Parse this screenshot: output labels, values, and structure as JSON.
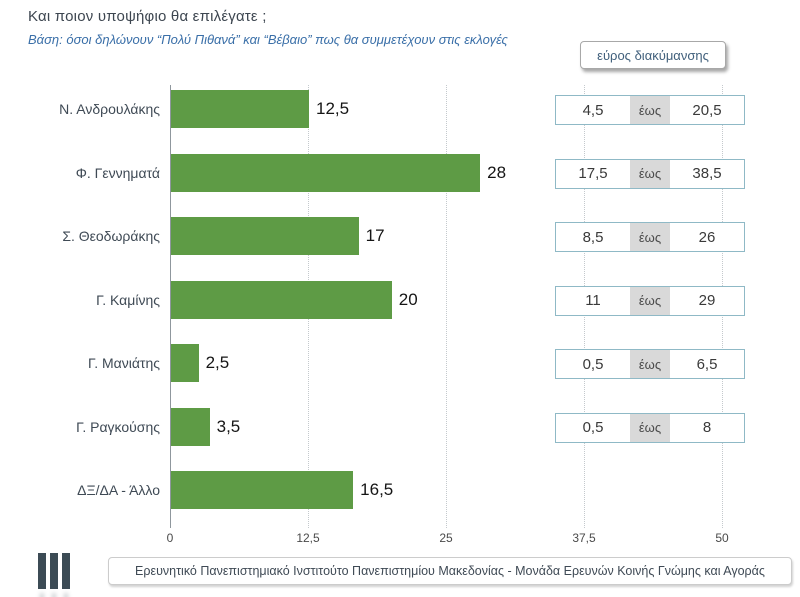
{
  "title": "Και ποιον υποψήφιο θα επιλέγατε ;",
  "subtitle": "Βάση: όσοι δηλώνουν “Πολύ Πιθανά” και “Βέβαιο” πως θα συμμετέχουν στις εκλογές",
  "legend_box_label": "εύρος διακύμανσης",
  "footer": "Ερευνητικό Πανεπιστημιακό Ινστιτούτο Πανεπιστημίου Μακεδονίας - Μονάδα Ερευνών Κοινής Γνώμης και Αγοράς",
  "colors": {
    "bar_green": "#5e9b45",
    "subtitle_blue": "#3a6fa8",
    "range_border_blue": "#8fb9c6",
    "range_sep_grey": "#d9d9d9",
    "logo_dark": "#3c4b55"
  },
  "chart_data": {
    "type": "bar",
    "orientation": "horizontal",
    "title": "Και ποιον υποψήφιο θα επιλέγατε ;",
    "categories": [
      "Ν. Ανδρουλάκης",
      "Φ. Γεννηματά",
      "Σ. Θεοδωράκης",
      "Γ. Καμίνης",
      "Γ. Μανιάτης",
      "Γ. Ραγκούσης",
      "ΔΞ/ΔΑ - Άλλο"
    ],
    "values": [
      12.5,
      28,
      17,
      20,
      2.5,
      3.5,
      16.5
    ],
    "value_labels": [
      "12,5",
      "28",
      "17",
      "20",
      "2,5",
      "3,5",
      "16,5"
    ],
    "range_separator": "έως",
    "ranges": [
      {
        "low": "4,5",
        "high": "20,5"
      },
      {
        "low": "17,5",
        "high": "38,5"
      },
      {
        "low": "8,5",
        "high": "26"
      },
      {
        "low": "11",
        "high": "29"
      },
      {
        "low": "0,5",
        "high": "6,5"
      },
      {
        "low": "0,5",
        "high": "8"
      },
      null
    ],
    "xlim": [
      0,
      50
    ],
    "xtick_values": [
      0,
      12.5,
      25,
      37.5,
      50
    ],
    "xtick_labels": [
      "0",
      "12,5",
      "25",
      "37,5",
      "50"
    ],
    "grid": "dotted-vertical",
    "bar_color": "#5e9b45"
  }
}
